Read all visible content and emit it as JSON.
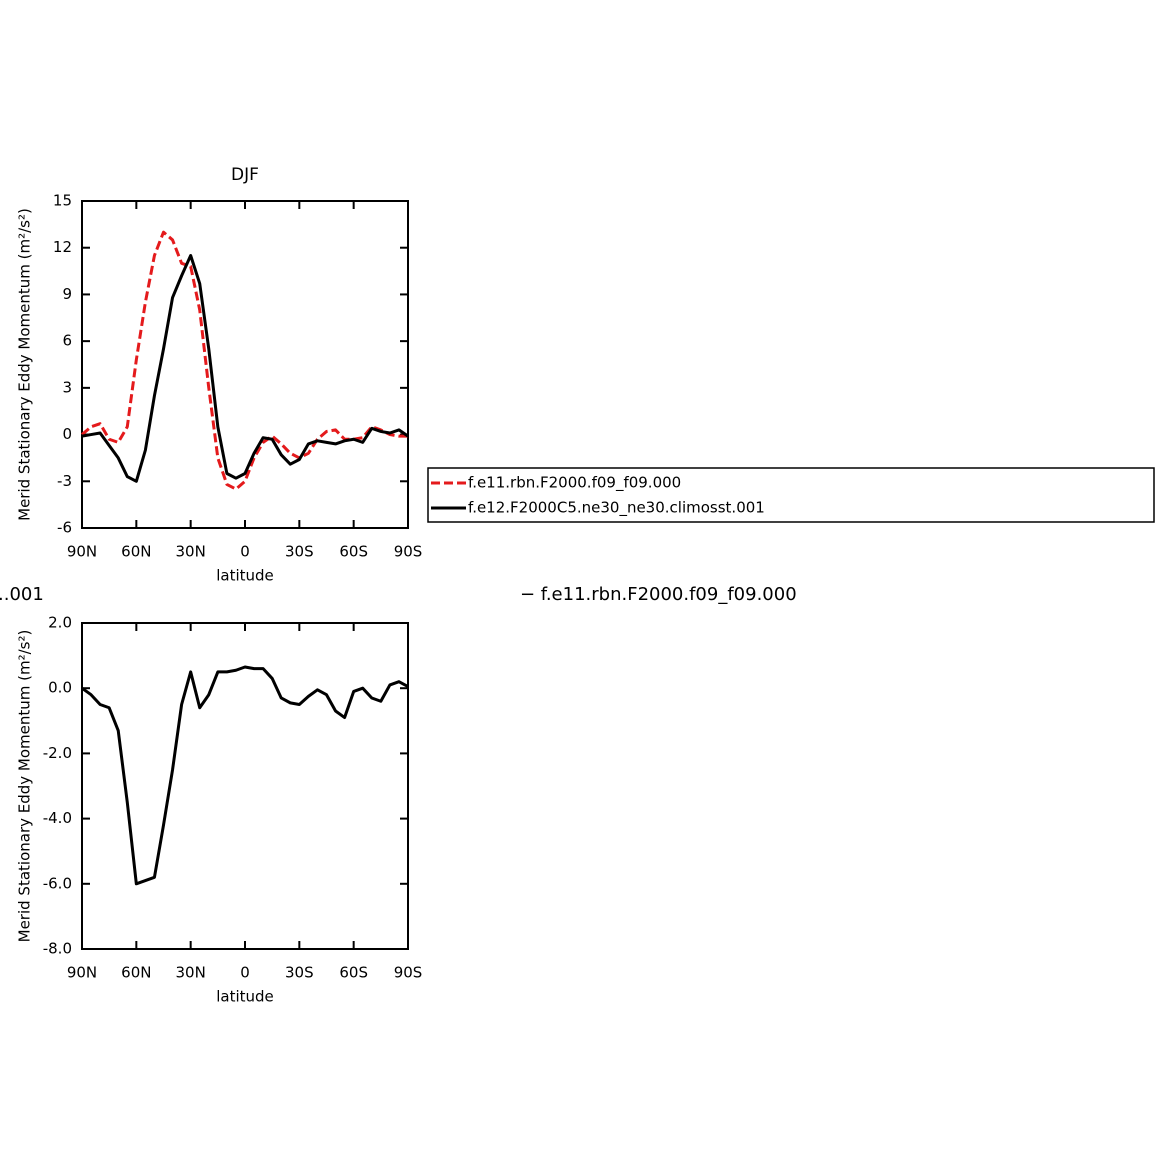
{
  "chart_data": [
    {
      "type": "line",
      "title": "DJF",
      "ylabel": "Merid Stationary Eddy Momentum (m²/s²)",
      "xlabel": "latitude",
      "x": [
        90,
        85,
        80,
        75,
        70,
        65,
        60,
        55,
        50,
        45,
        40,
        35,
        30,
        25,
        20,
        15,
        10,
        5,
        0,
        -5,
        -10,
        -15,
        -20,
        -25,
        -30,
        -35,
        -40,
        -45,
        -50,
        -55,
        -60,
        -65,
        -70,
        -75,
        -80,
        -85,
        -90
      ],
      "xlim": [
        90,
        -90
      ],
      "xticks": [
        {
          "value": 90,
          "label": "90N"
        },
        {
          "value": 60,
          "label": "60N"
        },
        {
          "value": 30,
          "label": "30N"
        },
        0,
        {
          "value": -30,
          "label": "30S"
        },
        {
          "value": -60,
          "label": "60S"
        },
        {
          "value": -90,
          "label": "90S"
        }
      ],
      "ylim": [
        -6,
        15
      ],
      "yticks": [
        -6,
        -3,
        0,
        3,
        6,
        9,
        12,
        15
      ],
      "legend": "right",
      "series": [
        {
          "name": "f.e11.rbn.F2000.f09_f09.000",
          "color": "#e41a1c",
          "dash": true,
          "values": [
            0,
            0.5,
            0.7,
            -0.3,
            -0.5,
            0.5,
            4.8,
            8.5,
            11.5,
            13,
            12.5,
            11,
            10.8,
            8,
            3,
            -1.5,
            -3.2,
            -3.5,
            -3,
            -1.5,
            -0.5,
            -0.1,
            -0.6,
            -1.2,
            -1.5,
            -1.2,
            -0.3,
            0.2,
            0.3,
            -0.3,
            -0.3,
            -0.2,
            0.5,
            0.3,
            0,
            -0.1,
            -0.1
          ]
        },
        {
          "name": "f.e12.F2000C5.ne30_ne30.climosst.001",
          "color": "#000000",
          "dash": false,
          "values": [
            -0.1,
            0,
            0.1,
            -0.7,
            -1.5,
            -2.7,
            -3,
            -1,
            2.5,
            5.5,
            8.8,
            10.2,
            11.5,
            9.7,
            5.5,
            0.5,
            -2.5,
            -2.8,
            -2.5,
            -1.2,
            -0.2,
            -0.3,
            -1.3,
            -1.9,
            -1.6,
            -0.6,
            -0.4,
            -0.5,
            -0.6,
            -0.4,
            -0.3,
            -0.5,
            0.4,
            0.2,
            0.1,
            0.3,
            -0.1
          ]
        }
      ]
    },
    {
      "type": "line",
      "title": "..001",
      "annotation": "− f.e11.rbn.F2000.f09_f09.000",
      "ylabel": "Merid Stationary Eddy Momentum (m²/s²)",
      "xlabel": "latitude",
      "x": [
        90,
        85,
        80,
        75,
        70,
        65,
        60,
        55,
        50,
        45,
        40,
        35,
        30,
        25,
        20,
        15,
        10,
        5,
        0,
        -5,
        -10,
        -15,
        -20,
        -25,
        -30,
        -35,
        -40,
        -45,
        -50,
        -55,
        -60,
        -65,
        -70,
        -75,
        -80,
        -85,
        -90
      ],
      "xlim": [
        90,
        -90
      ],
      "xticks": [
        {
          "value": 90,
          "label": "90N"
        },
        {
          "value": 60,
          "label": "60N"
        },
        {
          "value": 30,
          "label": "30N"
        },
        0,
        {
          "value": -30,
          "label": "30S"
        },
        {
          "value": -60,
          "label": "60S"
        },
        {
          "value": -90,
          "label": "90S"
        }
      ],
      "ylim": [
        -8,
        2
      ],
      "yticks": [
        {
          "value": -8,
          "label": "-8.0"
        },
        {
          "value": -6,
          "label": "-6.0"
        },
        {
          "value": -4,
          "label": "-4.0"
        },
        {
          "value": -2,
          "label": "-2.0"
        },
        {
          "value": 0,
          "label": "0.0"
        },
        {
          "value": 2,
          "label": "2.0"
        }
      ],
      "series": [
        {
          "color": "#000000",
          "dash": false,
          "values": [
            0,
            -0.2,
            -0.5,
            -0.6,
            -1.3,
            -3.5,
            -6,
            -5.9,
            -5.8,
            -4.2,
            -2.5,
            -0.5,
            0.5,
            -0.6,
            -0.2,
            0.5,
            0.5,
            0.55,
            0.65,
            0.6,
            0.6,
            0.3,
            -0.3,
            -0.45,
            -0.5,
            -0.25,
            -0.05,
            -0.2,
            -0.7,
            -0.9,
            -0.1,
            0,
            -0.3,
            -0.4,
            0.1,
            0.2,
            0.05
          ]
        }
      ]
    }
  ]
}
